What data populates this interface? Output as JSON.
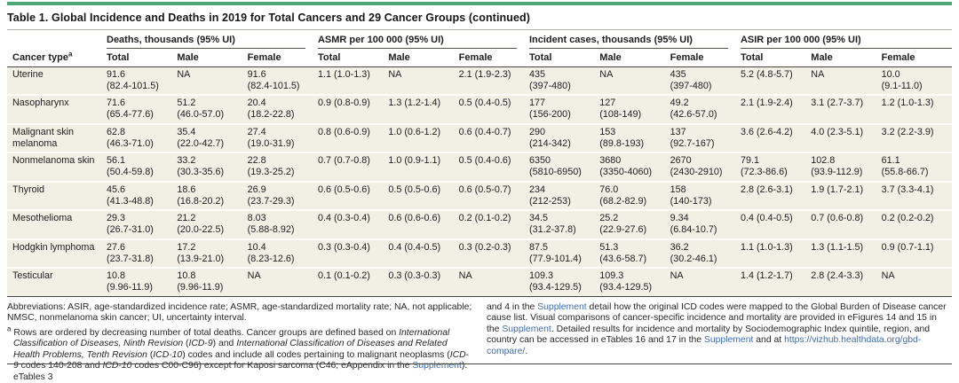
{
  "colors": {
    "accent_bar_green": "#4da878",
    "link_blue": "#3f6ba8",
    "row_shading": "#f2efe4"
  },
  "table": {
    "title": "Table 1. Global Incidence and Deaths in 2019 for Total Cancers and 29 Cancer Groups (continued)",
    "row_header_label": "Cancer type",
    "row_header_sup": "a",
    "groups": [
      "Deaths, thousands (95% UI)",
      "ASMR per 100 000 (95% UI)",
      "Incident cases, thousands (95% UI)",
      "ASIR per 100 000 (95% UI)"
    ],
    "subheaders": [
      "Total",
      "Male",
      "Female"
    ],
    "rows": [
      {
        "name": "Uterine",
        "cells": [
          "91.6\n(82.4-101.5)",
          "NA",
          "91.6\n(82.4-101.5)",
          "1.1 (1.0-1.3)",
          "NA",
          "2.1 (1.9-2.3)",
          "435\n(397-480)",
          "NA",
          "435\n(397-480)",
          "5.2 (4.8-5.7)",
          "NA",
          "10.0\n(9.1-11.0)"
        ]
      },
      {
        "name": "Nasopharynx",
        "cells": [
          "71.6\n(65.4-77.6)",
          "51.2\n(46.0-57.0)",
          "20.4\n(18.2-22.8)",
          "0.9 (0.8-0.9)",
          "1.3 (1.2-1.4)",
          "0.5 (0.4-0.5)",
          "177\n(156-200)",
          "127\n(108-149)",
          "49.2\n(42.6-57.0)",
          "2.1 (1.9-2.4)",
          "3.1 (2.7-3.7)",
          "1.2 (1.0-1.3)"
        ]
      },
      {
        "name": "Malignant skin melanoma",
        "cells": [
          "62.8\n(46.3-71.0)",
          "35.4\n(22.0-42.7)",
          "27.4\n(19.0-31.9)",
          "0.8 (0.6-0.9)",
          "1.0 (0.6-1.2)",
          "0.6 (0.4-0.7)",
          "290\n(214-342)",
          "153\n(89.8-193)",
          "137\n(92.7-167)",
          "3.6 (2.6-4.2)",
          "4.0 (2.3-5.1)",
          "3.2 (2.2-3.9)"
        ]
      },
      {
        "name": "Nonmelanoma skin",
        "cells": [
          "56.1\n(50.4-59.8)",
          "33.2\n(30.3-35.6)",
          "22.8\n(19.3-25.2)",
          "0.7 (0.7-0.8)",
          "1.0 (0.9-1.1)",
          "0.5 (0.4-0.6)",
          "6350\n(5810-6950)",
          "3680\n(3350-4060)",
          "2670\n(2430-2910)",
          "79.1\n(72.3-86.6)",
          "102.8\n(93.9-112.9)",
          "61.1\n(55.8-66.7)"
        ]
      },
      {
        "name": "Thyroid",
        "cells": [
          "45.6\n(41.3-48.8)",
          "18.6\n(16.8-20.2)",
          "26.9\n(23.7-29.3)",
          "0.6 (0.5-0.6)",
          "0.5 (0.5-0.6)",
          "0.6 (0.5-0.7)",
          "234\n(212-253)",
          "76.0\n(68.2-82.9)",
          "158\n(140-173)",
          "2.8 (2.6-3.1)",
          "1.9 (1.7-2.1)",
          "3.7 (3.3-4.1)"
        ]
      },
      {
        "name": "Mesothelioma",
        "cells": [
          "29.3\n(26.7-31.0)",
          "21.2\n(20.0-22.5)",
          "8.03\n(5.88-8.92)",
          "0.4 (0.3-0.4)",
          "0.6 (0.6-0.6)",
          "0.2 (0.1-0.2)",
          "34.5\n(31.2-37.8)",
          "25.2\n(22.9-27.6)",
          "9.34\n(6.84-10.7)",
          "0.4 (0.4-0.5)",
          "0.7 (0.6-0.8)",
          "0.2 (0.2-0.2)"
        ]
      },
      {
        "name": "Hodgkin lymphoma",
        "cells": [
          "27.6\n(23.7-31.8)",
          "17.2\n(13.9-21.0)",
          "10.4\n(8.23-12.6)",
          "0.3 (0.3-0.4)",
          "0.4 (0.4-0.5)",
          "0.3 (0.2-0.3)",
          "87.5\n(77.9-101.4)",
          "51.3\n(43.6-58.7)",
          "36.2\n(30.2-46.1)",
          "1.1 (1.0-1.3)",
          "1.3 (1.1-1.5)",
          "0.9 (0.7-1.1)"
        ]
      },
      {
        "name": "Testicular",
        "cells": [
          "10.8\n(9.96-11.9)",
          "10.8\n(9.96-11.9)",
          "NA",
          "0.1 (0.1-0.2)",
          "0.3 (0.3-0.3)",
          "NA",
          "109.3\n(93.4-129.5)",
          "109.3\n(93.4-129.5)",
          "NA",
          "1.4 (1.2-1.7)",
          "2.8 (2.4-3.3)",
          "NA"
        ]
      }
    ]
  },
  "footnotes": {
    "abbreviations": "Abbreviations: ASIR, age-standardized incidence rate; ASMR, age-standardized mortality rate; NA, not applicable; NMSC, nonmelanoma skin cancer; UI, uncertainty interval.",
    "note_a_segments": [
      {
        "t": "a",
        "s": "sup"
      },
      {
        "t": " Rows are ordered by decreasing number of total deaths. Cancer groups are defined based on ",
        "s": "n"
      },
      {
        "t": "International Classification of Diseases, Ninth Revision",
        "s": "i"
      },
      {
        "t": " (",
        "s": "n"
      },
      {
        "t": "ICD-9",
        "s": "i"
      },
      {
        "t": ") and ",
        "s": "n"
      },
      {
        "t": "International Classification of Diseases and Related Health Problems, Tenth Revision",
        "s": "i"
      },
      {
        "t": " (",
        "s": "n"
      },
      {
        "t": "ICD-10",
        "s": "i"
      },
      {
        "t": ") codes and include all codes pertaining to malignant neoplasms (",
        "s": "n"
      },
      {
        "t": "ICD-9",
        "s": "i"
      },
      {
        "t": " codes 140-208 and ",
        "s": "n"
      },
      {
        "t": "ICD-10",
        "s": "i"
      },
      {
        "t": " codes C00-C96) except for Kaposi sarcoma (C46; eAppendix in the ",
        "s": "n"
      },
      {
        "t": "Supplement",
        "s": "link",
        "name": "supplement-link"
      },
      {
        "t": "). eTables 3",
        "s": "n"
      }
    ],
    "right_segments": [
      {
        "t": "and 4 in the ",
        "s": "n"
      },
      {
        "t": "Supplement",
        "s": "link",
        "name": "supplement-link"
      },
      {
        "t": " detail how the original ICD codes were mapped to the Global Burden of Disease cancer cause list. Visual comparisons of cancer-specific incidence and mortality are provided in eFigures 14 and 15 in the ",
        "s": "n"
      },
      {
        "t": "Supplement",
        "s": "link",
        "name": "supplement-link"
      },
      {
        "t": ". Detailed results for incidence and mortality by Sociodemographic Index quintile, region, and country can be accessed in eTables 16 and 17 in the ",
        "s": "n"
      },
      {
        "t": "Supplement",
        "s": "link",
        "name": "supplement-link"
      },
      {
        "t": " and at ",
        "s": "n"
      },
      {
        "t": "https://vizhub.healthdata.org/gbd-compare/",
        "s": "link",
        "name": "gbd-compare-url-link"
      },
      {
        "t": ".",
        "s": "n"
      }
    ]
  }
}
